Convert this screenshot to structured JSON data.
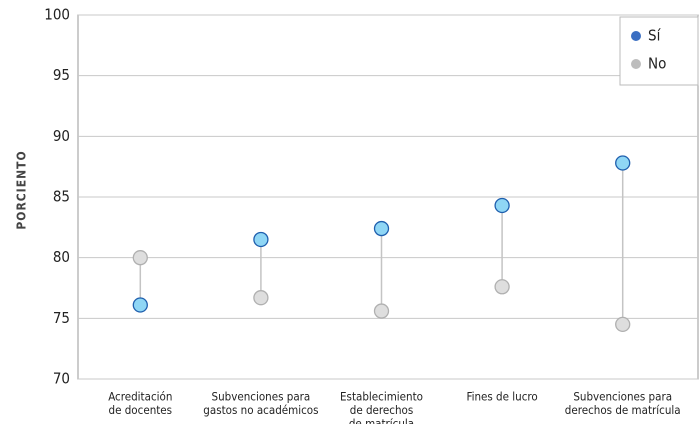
{
  "chart_data": {
    "type": "dumbbell",
    "y_label": "PORCIENTO",
    "categories": [
      [
        "Acreditación",
        "de docentes"
      ],
      [
        "Subvenciones para",
        "gastos no académicos"
      ],
      [
        "Establecimiento",
        "de derechos",
        "de matrícula"
      ],
      [
        "Fines de lucro"
      ],
      [
        "Subvenciones para",
        "derechos de matrícula"
      ]
    ],
    "series": [
      {
        "name": "Sí",
        "color": "#3b6fc2",
        "marker_fill": "#8fd6f5",
        "marker_stroke": "#1f5fae",
        "values": [
          76.1,
          81.5,
          82.4,
          84.3,
          87.8
        ]
      },
      {
        "name": "No",
        "color": "#bdbdbd",
        "marker_fill": "#dedede",
        "marker_stroke": "#b0b0b0",
        "values": [
          80.0,
          76.7,
          75.6,
          77.6,
          74.5
        ]
      }
    ],
    "connector_color": "#c4c4c4",
    "ylim": [
      70,
      100
    ],
    "yticks": [
      70,
      75,
      80,
      85,
      90,
      95,
      100
    ],
    "grid": true,
    "legend": "upper right"
  }
}
